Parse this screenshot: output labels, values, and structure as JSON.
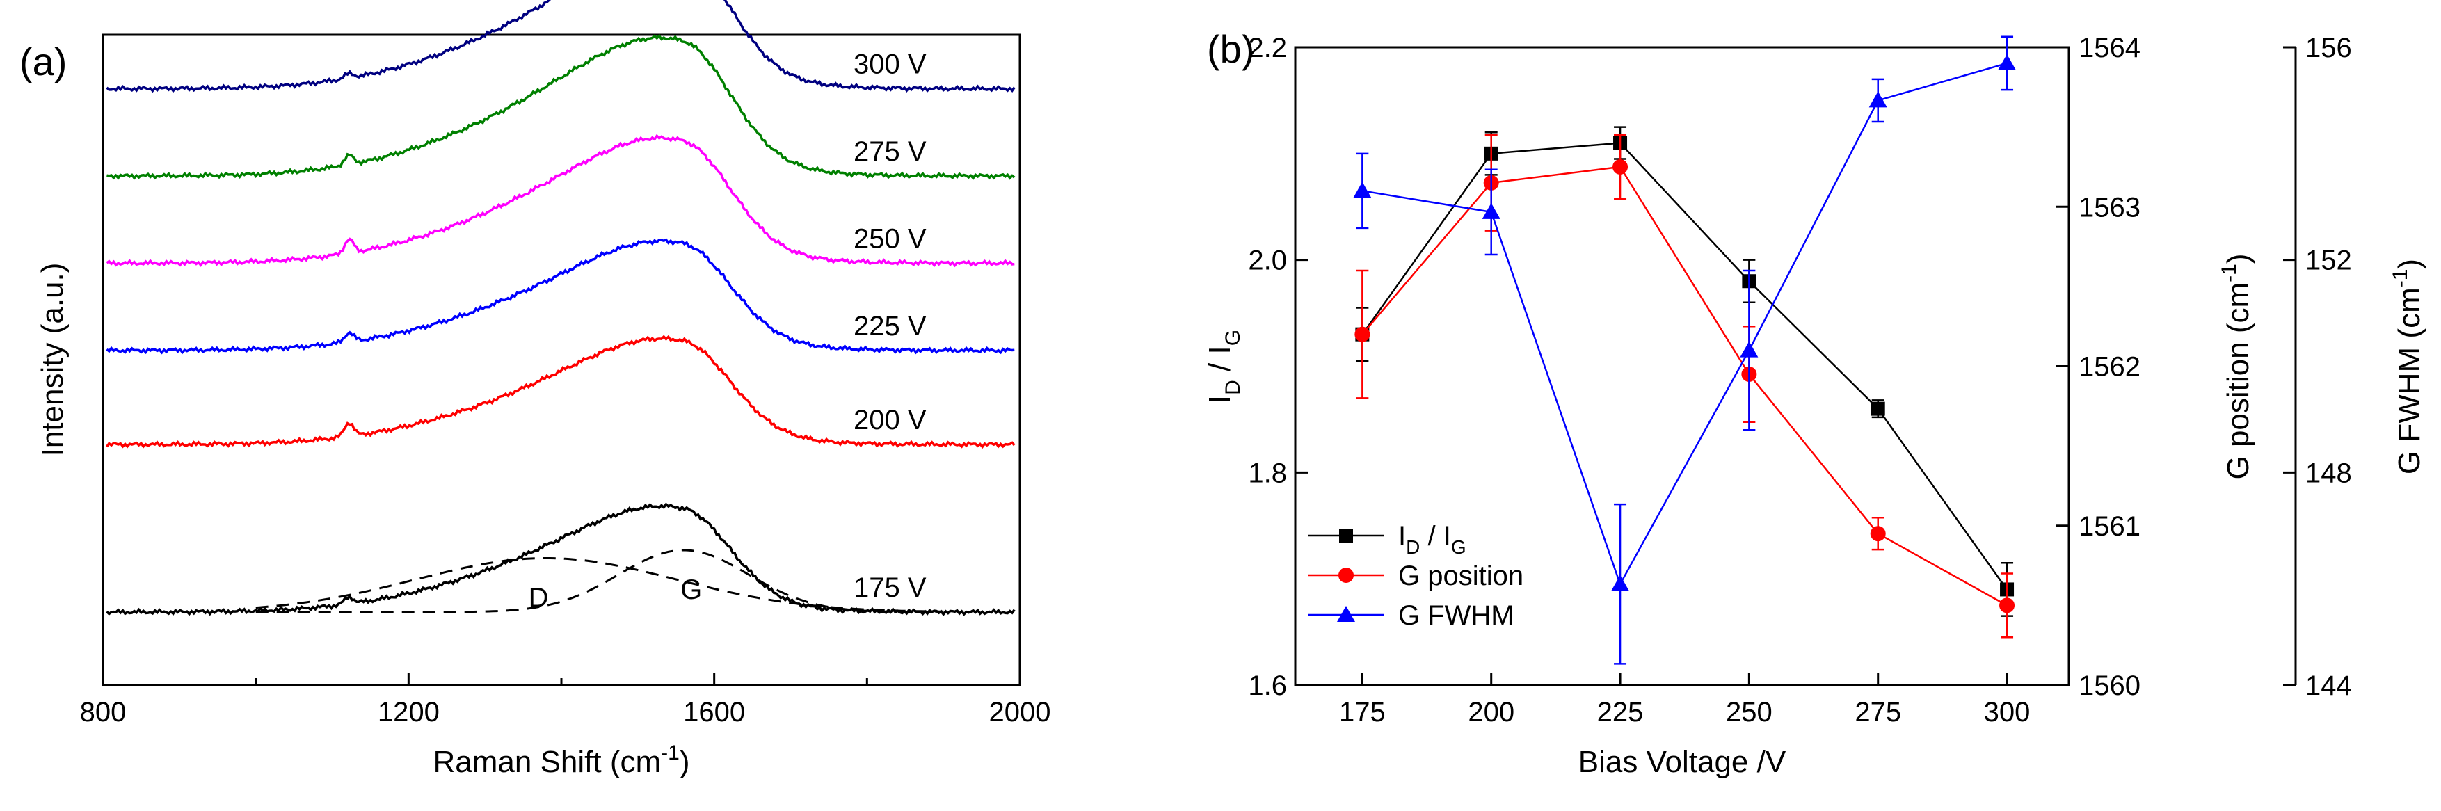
{
  "chart_data": [
    {
      "panel": "(a)",
      "type": "line",
      "xlabel": "Raman Shift (cm-1)",
      "ylabel": "Intensity (a.u.)",
      "xlim": [
        800,
        2000
      ],
      "xticks": [
        800,
        1200,
        1600,
        2000
      ],
      "y_ticks_shown": false,
      "series": [
        {
          "name": "175 V",
          "label": "175 V",
          "color": "#000000",
          "offset": 0.0,
          "peak_amp": 0.36,
          "base_slope": 0.0,
          "d_ratio": 0.57,
          "spike": 0.03
        },
        {
          "name": "200 V",
          "label": "200 V",
          "color": "#ff0000",
          "offset": 0.73,
          "peak_amp": 0.36,
          "base_slope": 0.0,
          "d_ratio": 0.57,
          "spike": 0.06
        },
        {
          "name": "225 V",
          "label": "225 V",
          "color": "#0000ff",
          "offset": 1.14,
          "peak_amp": 0.37,
          "base_slope": 0.0,
          "d_ratio": 0.58,
          "spike": 0.04
        },
        {
          "name": "250 V",
          "label": "250 V",
          "color": "#ff00ff",
          "offset": 1.52,
          "peak_amp": 0.42,
          "base_slope": 0.0,
          "d_ratio": 0.6,
          "spike": 0.06
        },
        {
          "name": "275 V",
          "label": "275 V",
          "color": "#008000",
          "offset": 1.9,
          "peak_amp": 0.46,
          "base_slope": 0.0,
          "d_ratio": 0.62,
          "spike": 0.04
        },
        {
          "name": "300 V",
          "label": "300 V",
          "color": "#000080",
          "offset": 2.28,
          "peak_amp": 0.46,
          "base_slope": 0.0,
          "d_ratio": 0.58,
          "spike": 0.02
        }
      ],
      "fit_components": [
        {
          "name": "D",
          "label": "D",
          "center": 1380,
          "width": 170,
          "amp": 0.235,
          "style": "dashed"
        },
        {
          "name": "G",
          "label": "G",
          "center": 1560,
          "width": 85,
          "amp": 0.27,
          "style": "dashed"
        }
      ]
    },
    {
      "panel": "(b)",
      "type": "line",
      "xlabel": "Bias Voltage /V",
      "x": [
        175,
        200,
        225,
        250,
        275,
        300
      ],
      "xlim": [
        162,
        312
      ],
      "axes": [
        {
          "id": "left",
          "label": "ID / IG",
          "label_main": "I",
          "sub1": "D",
          "label_sep": " / I",
          "sub2": "G",
          "lim": [
            1.6,
            2.2
          ],
          "ticks": [
            1.6,
            1.8,
            2.0,
            2.2
          ]
        },
        {
          "id": "right1",
          "label": "G position (cm-1)",
          "lim": [
            1560,
            1564
          ],
          "ticks": [
            1560,
            1561,
            1562,
            1563,
            1564
          ]
        },
        {
          "id": "right2",
          "label": "G FWHM (cm-1)",
          "lim": [
            144,
            156
          ],
          "ticks": [
            144,
            148,
            152,
            156
          ]
        }
      ],
      "series": [
        {
          "name": "ID / IG",
          "axis": "left",
          "color": "#000000",
          "marker": "square",
          "values": [
            1.93,
            2.1,
            2.11,
            1.98,
            1.86,
            1.69
          ],
          "errors": [
            0.025,
            0.02,
            0.015,
            0.02,
            0.008,
            0.025
          ]
        },
        {
          "name": "G position",
          "axis": "right1",
          "color": "#ff0000",
          "marker": "circle",
          "values": [
            1562.2,
            1563.15,
            1563.25,
            1561.95,
            1560.95,
            1560.5
          ],
          "errors": [
            0.4,
            0.3,
            0.2,
            0.3,
            0.1,
            0.2
          ]
        },
        {
          "name": "G FWHM",
          "axis": "right2",
          "color": "#0000ff",
          "marker": "triangle",
          "values": [
            153.3,
            152.9,
            145.9,
            150.3,
            155.0,
            155.7
          ],
          "errors": [
            0.7,
            0.8,
            1.5,
            1.5,
            0.4,
            0.5
          ]
        }
      ],
      "legend": {
        "placement": "lower-left",
        "entries": [
          {
            "main": "I",
            "sub1": "D",
            "sep": " / I",
            "sub2": "G"
          },
          {
            "main": "G position",
            "sub1": "",
            "sep": "",
            "sub2": ""
          },
          {
            "main": "G FWHM",
            "sub1": "",
            "sep": "",
            "sub2": ""
          }
        ]
      }
    }
  ]
}
